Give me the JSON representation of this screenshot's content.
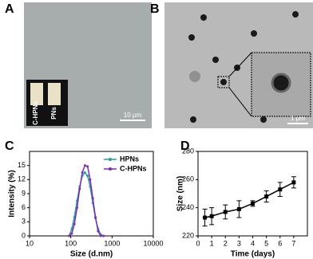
{
  "panels": [
    "A",
    "B",
    "C",
    "D"
  ],
  "images": {
    "A": {
      "scale_bar": "10 μm",
      "tubes": [
        "C-HPNs",
        "PNs"
      ]
    },
    "B": {
      "scale_bar": "1 μm"
    }
  },
  "chart_data": [
    {
      "type": "line",
      "xlabel": "Size (d.nm)",
      "ylabel": "Intensity (%)",
      "xscale": "log",
      "xlim": [
        10,
        10000
      ],
      "xticks": [
        10,
        100,
        1000,
        10000
      ],
      "ylim": [
        0,
        18
      ],
      "yticks": [
        0,
        3,
        6,
        9,
        12,
        15
      ],
      "legend": "upper right",
      "series": [
        {
          "name": "HPNs",
          "color": "#2a9d9d",
          "x": [
            91,
            106,
            122,
            142,
            164,
            190,
            220,
            255,
            295,
            342,
            396,
            459,
            531,
            615
          ],
          "values": [
            0,
            1.5,
            4,
            7.5,
            10.5,
            12.8,
            13.5,
            12.8,
            10.5,
            7,
            3.8,
            1.5,
            0.3,
            0
          ]
        },
        {
          "name": "C-HPNs",
          "color": "#7b2fb0",
          "x": [
            91,
            106,
            122,
            142,
            164,
            190,
            220,
            255,
            295,
            342,
            396,
            459,
            531,
            615
          ],
          "values": [
            0,
            0.5,
            2.5,
            6,
            10,
            13.5,
            15,
            14.8,
            12,
            8,
            4,
            1,
            0,
            0
          ]
        }
      ]
    },
    {
      "type": "line",
      "xlabel": "Time (days)",
      "ylabel": "Size (nm)",
      "xlim": [
        0,
        8
      ],
      "xticks": [
        0,
        1,
        2,
        3,
        4,
        5,
        6,
        7
      ],
      "ylim": [
        220,
        280
      ],
      "yticks": [
        220,
        240,
        260,
        280
      ],
      "series": [
        {
          "color": "#000000",
          "x": [
            0.5,
            1,
            2,
            3,
            4,
            5,
            6,
            7
          ],
          "values": [
            233,
            234,
            237,
            239,
            243,
            248,
            253,
            258
          ],
          "errors": [
            6,
            6,
            5,
            6,
            2,
            4,
            5,
            4
          ]
        }
      ]
    }
  ]
}
